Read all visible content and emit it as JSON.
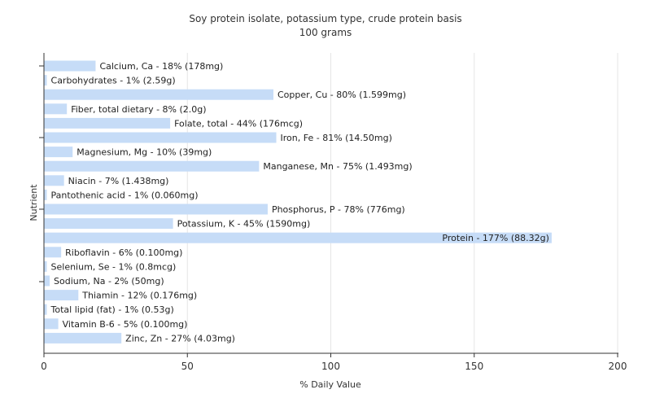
{
  "chart_data": {
    "type": "bar",
    "orientation": "horizontal",
    "title": "Soy protein isolate, potassium type, crude protein basis",
    "subtitle": "100 grams",
    "xlabel": "% Daily Value",
    "ylabel": "Nutrient",
    "xlim": [
      0,
      200
    ],
    "xticks": [
      0,
      50,
      100,
      150,
      200
    ],
    "grid": true,
    "bar_color": "#c6dcf7",
    "categories": [
      "Calcium, Ca",
      "Carbohydrates",
      "Copper, Cu",
      "Fiber, total dietary",
      "Folate, total",
      "Iron, Fe",
      "Magnesium, Mg",
      "Manganese, Mn",
      "Niacin",
      "Pantothenic acid",
      "Phosphorus, P",
      "Potassium, K",
      "Protein",
      "Riboflavin",
      "Selenium, Se",
      "Sodium, Na",
      "Thiamin",
      "Total lipid (fat)",
      "Vitamin B-6",
      "Zinc, Zn"
    ],
    "values": [
      18,
      1,
      80,
      8,
      44,
      81,
      10,
      75,
      7,
      1,
      78,
      45,
      177,
      6,
      1,
      2,
      12,
      1,
      5,
      27
    ],
    "labels": [
      "Calcium, Ca - 18% (178mg)",
      "Carbohydrates - 1% (2.59g)",
      "Copper, Cu - 80% (1.599mg)",
      "Fiber, total dietary - 8% (2.0g)",
      "Folate, total - 44% (176mcg)",
      "Iron, Fe - 81% (14.50mg)",
      "Magnesium, Mg - 10% (39mg)",
      "Manganese, Mn - 75% (1.493mg)",
      "Niacin - 7% (1.438mg)",
      "Pantothenic acid - 1% (0.060mg)",
      "Phosphorus, P - 78% (776mg)",
      "Potassium, K - 45% (1590mg)",
      "Protein - 177% (88.32g)",
      "Riboflavin - 6% (0.100mg)",
      "Selenium, Se - 1% (0.8mcg)",
      "Sodium, Na - 2% (50mg)",
      "Thiamin - 12% (0.176mg)",
      "Total lipid (fat) - 1% (0.53g)",
      "Vitamin B-6 - 5% (0.100mg)",
      "Zinc, Zn - 27% (4.03mg)"
    ]
  }
}
